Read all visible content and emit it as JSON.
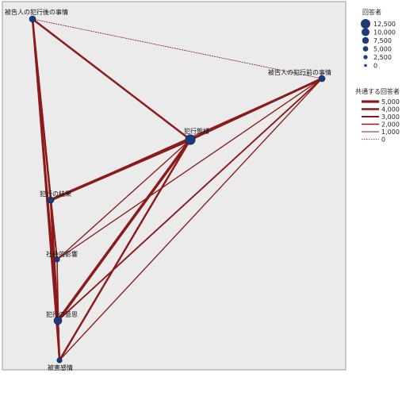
{
  "nodes": [
    {
      "id": "n1",
      "label": "被告人の犯行後の事情",
      "size_class": 2
    },
    {
      "id": "n2",
      "label": "被告人の犯行前の事情",
      "size_class": 2
    },
    {
      "id": "n3",
      "label": "犯行態様",
      "size_class": 4
    },
    {
      "id": "n4",
      "label": "犯行の結果",
      "size_class": 2
    },
    {
      "id": "n5",
      "label": "社会的影響",
      "size_class": 1
    },
    {
      "id": "n6",
      "label": "犯行の意思",
      "size_class": 3
    },
    {
      "id": "n7",
      "label": "被害感情",
      "size_class": 1
    }
  ],
  "edges": [
    {
      "from": "n1",
      "to": "n2",
      "weight": 0
    },
    {
      "from": "n1",
      "to": "n3",
      "weight": 3000
    },
    {
      "from": "n1",
      "to": "n4",
      "weight": 3000
    },
    {
      "from": "n1",
      "to": "n5",
      "weight": 2000
    },
    {
      "from": "n1",
      "to": "n6",
      "weight": 3000
    },
    {
      "from": "n1",
      "to": "n7",
      "weight": 2000
    },
    {
      "from": "n2",
      "to": "n3",
      "weight": 4000
    },
    {
      "from": "n2",
      "to": "n4",
      "weight": 1000
    },
    {
      "from": "n2",
      "to": "n5",
      "weight": 1000
    },
    {
      "from": "n2",
      "to": "n6",
      "weight": 2000
    },
    {
      "from": "n2",
      "to": "n7",
      "weight": 1000
    },
    {
      "from": "n3",
      "to": "n4",
      "weight": 5000
    },
    {
      "from": "n3",
      "to": "n5",
      "weight": 1000
    },
    {
      "from": "n3",
      "to": "n6",
      "weight": 5000
    },
    {
      "from": "n3",
      "to": "n7",
      "weight": 3000
    },
    {
      "from": "n4",
      "to": "n5",
      "weight": 2000
    },
    {
      "from": "n4",
      "to": "n6",
      "weight": 3000
    },
    {
      "from": "n4",
      "to": "n7",
      "weight": 3000
    },
    {
      "from": "n5",
      "to": "n6",
      "weight": 1000
    },
    {
      "from": "n5",
      "to": "n7",
      "weight": 1000
    },
    {
      "from": "n6",
      "to": "n7",
      "weight": 3000
    }
  ],
  "legend": {
    "respondents": {
      "title": "回答者",
      "items": [
        "12,500",
        "10,000",
        "7,500",
        "5,000",
        "2,500",
        "0"
      ]
    },
    "shared": {
      "title": "共通する回答者",
      "items": [
        "5,000",
        "4,000",
        "3,000",
        "2,000",
        "1,000",
        "0"
      ]
    }
  },
  "colors": {
    "edge": "#8b1a1a",
    "node": "#1f3a7a",
    "plot_background": "#ebebeb"
  }
}
